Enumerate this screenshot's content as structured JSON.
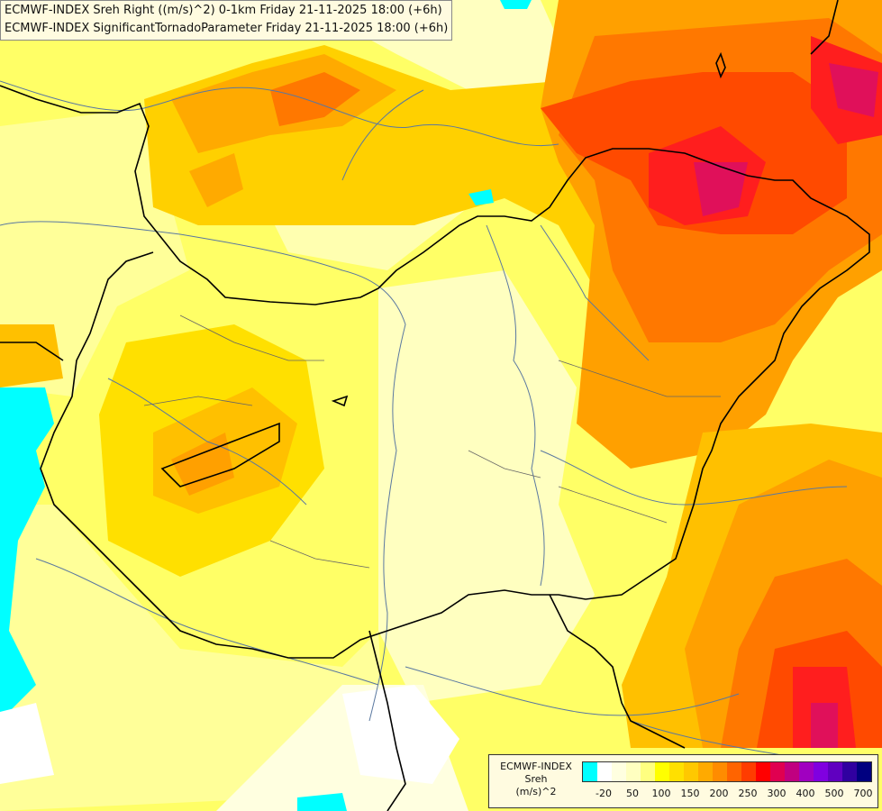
{
  "titles": {
    "line1": "ECMWF-INDEX Sreh Right ((m/s)^2) 0-1km Friday 21-11-2025 18:00 (+6h)",
    "line2": "ECMWF-INDEX SignificantTornadoParameter Friday 21-11-2025 18:00 (+6h)"
  },
  "legend": {
    "title_lines": [
      "ECMWF-INDEX",
      "Sreh",
      "(m/s)^2"
    ],
    "colors": [
      "#00ffff",
      "#ffffff",
      "#ffffe0",
      "#ffffc0",
      "#ffff80",
      "#ffff00",
      "#ffe000",
      "#ffc800",
      "#ffaa00",
      "#ff8c00",
      "#ff6400",
      "#ff3c00",
      "#ff0000",
      "#e00050",
      "#c00080",
      "#a000c0",
      "#8000e0",
      "#6000c0",
      "#3000a0",
      "#000080"
    ],
    "tick_labels": [
      "-20",
      "50",
      "100",
      "150",
      "200",
      "250",
      "300",
      "400",
      "500",
      "700"
    ],
    "tick_swatch_index": [
      1,
      3,
      5,
      7,
      9,
      11,
      13,
      15,
      17,
      19
    ]
  },
  "map_layers": {
    "field": "Sreh",
    "palette": {
      "cyan": "#00ffff",
      "white": "#ffffff",
      "pale": "#ffffd0",
      "lightyellow": "#ffff99",
      "yellow": "#ffff33",
      "gold": "#ffe000",
      "lightorange": "#ffc000",
      "orange": "#ffa000",
      "darkorange": "#ff7800",
      "redorange": "#ff4a00",
      "red": "#ff1e1e",
      "magenta": "#e0105a"
    },
    "border_color": "#000000",
    "river_color": "#5a78a0"
  }
}
